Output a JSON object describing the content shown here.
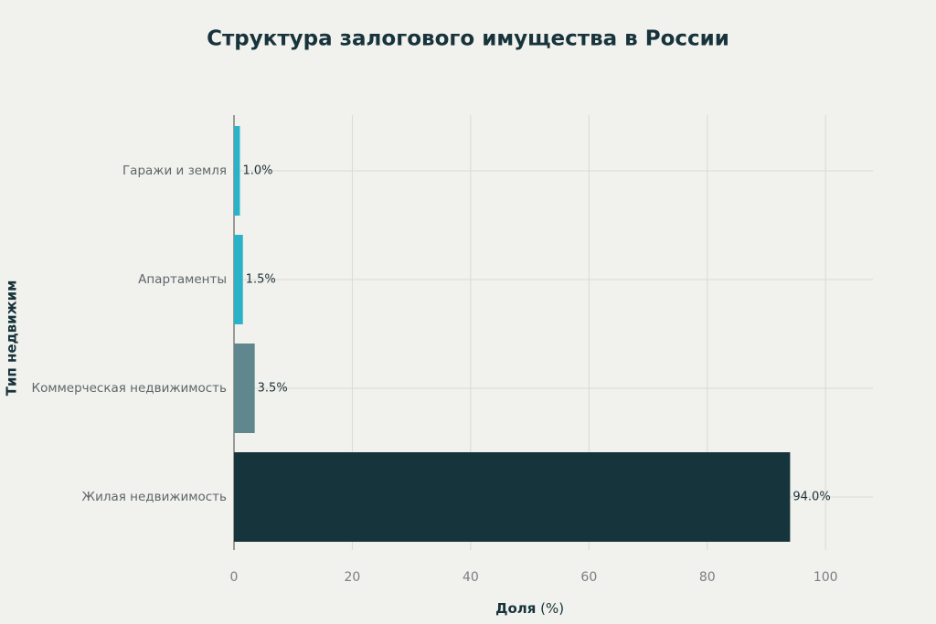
{
  "chart_data": {
    "type": "bar",
    "orientation": "horizontal",
    "title": "Структура залогового имущества в России",
    "xlabel": "Доля",
    "xlabel_unit": "(%)",
    "ylabel": "Тип недвижим",
    "categories": [
      "Гаражи и земля",
      "Апартаменты",
      "Коммерческая недвижимость",
      "Жилая недвижимость"
    ],
    "values": [
      1.0,
      1.5,
      3.5,
      94.0
    ],
    "value_labels": [
      "1.0%",
      "1.5%",
      "3.5%",
      "94.0%"
    ],
    "colors": [
      "#2ab3c8",
      "#2ab3c8",
      "#5f878d",
      "#16343c"
    ],
    "xlim": [
      0,
      108
    ],
    "xticks": [
      0,
      20,
      40,
      60,
      80,
      100
    ],
    "grid": true
  }
}
